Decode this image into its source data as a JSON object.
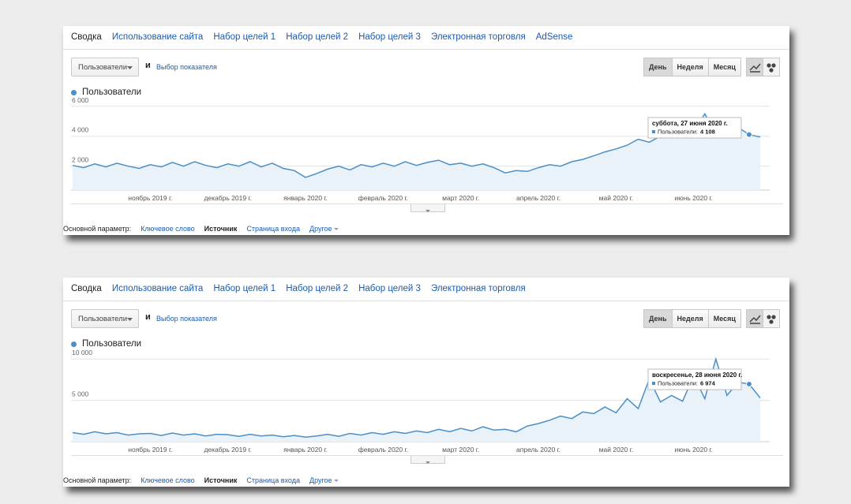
{
  "panels": [
    {
      "tabs": [
        "Сводка",
        "Использование сайта",
        "Набор целей 1",
        "Набор целей 2",
        "Набор целей 3",
        "Электронная торговля",
        "AdSense"
      ],
      "metric_select": "Пользователи",
      "and": "и",
      "choose_metric": "Выбор показателя",
      "periods": [
        "День",
        "Неделя",
        "Месяц"
      ],
      "primary_dimension_label": "Основной параметр:",
      "dimensions": [
        "Ключевое слово",
        "Источник",
        "Страница входа",
        "Другое"
      ]
    },
    {
      "tabs": [
        "Сводка",
        "Использование сайта",
        "Набор целей 1",
        "Набор целей 2",
        "Набор целей 3",
        "Электронная торговля"
      ],
      "metric_select": "Пользователи",
      "and": "и",
      "choose_metric": "Выбор показателя",
      "periods": [
        "День",
        "Неделя",
        "Месяц"
      ],
      "primary_dimension_label": "Основной параметр:",
      "dimensions": [
        "Ключевое слово",
        "Источник",
        "Страница входа",
        "Другое"
      ]
    }
  ],
  "chart_data": [
    {
      "type": "line",
      "categories": [
        null,
        null,
        null,
        null,
        null,
        null,
        null,
        "ноябрь 2019 г.",
        null,
        null,
        null,
        null,
        null,
        null,
        "декабрь 2019 г.",
        null,
        null,
        null,
        null,
        null,
        null,
        "январь 2020 г.",
        null,
        null,
        null,
        null,
        null,
        null,
        "февраль 2020 г.",
        null,
        null,
        null,
        null,
        null,
        null,
        "март 2020 г.",
        null,
        null,
        null,
        null,
        null,
        null,
        "апрель 2020 г.",
        null,
        null,
        null,
        null,
        null,
        null,
        "май 2020 г.",
        null,
        null,
        null,
        null,
        null,
        null,
        "июнь 2020 г.",
        null,
        null,
        null,
        null,
        null,
        null
      ],
      "series": [
        {
          "name": "Пользователи",
          "color": "#4a8fc7",
          "values": [
            2050,
            1900,
            2150,
            1950,
            2200,
            2000,
            1850,
            2100,
            1950,
            2250,
            2000,
            2300,
            2050,
            1900,
            2150,
            2000,
            2300,
            1950,
            2200,
            1850,
            1700,
            1250,
            1500,
            1800,
            2000,
            1750,
            2100,
            1950,
            2200,
            2000,
            2300,
            2050,
            2250,
            2400,
            2100,
            2200,
            2000,
            2150,
            1900,
            1550,
            1700,
            1650,
            1900,
            2100,
            2000,
            2300,
            2450,
            2700,
            2950,
            3150,
            3400,
            3800,
            3600,
            4000,
            4400,
            3900,
            4300,
            5500,
            4200,
            3900,
            4600,
            4108,
            3950
          ]
        }
      ],
      "ylim": [
        400,
        6200
      ],
      "yticks": [
        {
          "value": 2000,
          "label": "2 000"
        },
        {
          "value": 4000,
          "label": "4 000"
        },
        {
          "value": 6000,
          "label": "6 000"
        }
      ],
      "grid": true,
      "tooltip": {
        "title": "суббота, 27 июня 2020 г.",
        "series": "Пользователи:",
        "value": 4108,
        "value_label": "4 108"
      }
    },
    {
      "type": "line",
      "categories": [
        null,
        null,
        null,
        null,
        null,
        null,
        null,
        "ноябрь 2019 г.",
        null,
        null,
        null,
        null,
        null,
        null,
        "декабрь 2019 г.",
        null,
        null,
        null,
        null,
        null,
        null,
        "январь 2020 г.",
        null,
        null,
        null,
        null,
        null,
        null,
        "февраль 2020 г.",
        null,
        null,
        null,
        null,
        null,
        null,
        "март 2020 г.",
        null,
        null,
        null,
        null,
        null,
        null,
        "апрель 2020 г.",
        null,
        null,
        null,
        null,
        null,
        null,
        "май 2020 г.",
        null,
        null,
        null,
        null,
        null,
        null,
        "июнь 2020 г.",
        null,
        null,
        null,
        null,
        null,
        null
      ],
      "series": [
        {
          "name": "Пользователи",
          "color": "#4a8fc7",
          "values": [
            1100,
            900,
            1200,
            950,
            1100,
            800,
            950,
            1000,
            750,
            1050,
            800,
            950,
            700,
            900,
            850,
            650,
            900,
            700,
            800,
            600,
            750,
            550,
            700,
            900,
            650,
            1000,
            800,
            1100,
            900,
            1200,
            1000,
            1300,
            1100,
            1500,
            1200,
            1600,
            1300,
            1800,
            1400,
            1500,
            1200,
            1900,
            2200,
            2600,
            3100,
            2800,
            3600,
            3400,
            4200,
            3500,
            5200,
            4000,
            7600,
            4800,
            5600,
            4900,
            8000,
            5200,
            10000,
            5600,
            7200,
            6974,
            5300
          ]
        }
      ],
      "ylim": [
        0,
        10500
      ],
      "yticks": [
        {
          "value": 5000,
          "label": "5 000"
        },
        {
          "value": 10000,
          "label": "10 000"
        }
      ],
      "grid": true,
      "tooltip": {
        "title": "воскресенье, 28 июня 2020 г.",
        "series": "Пользователи:",
        "value": 6974,
        "value_label": "6 974"
      }
    }
  ]
}
